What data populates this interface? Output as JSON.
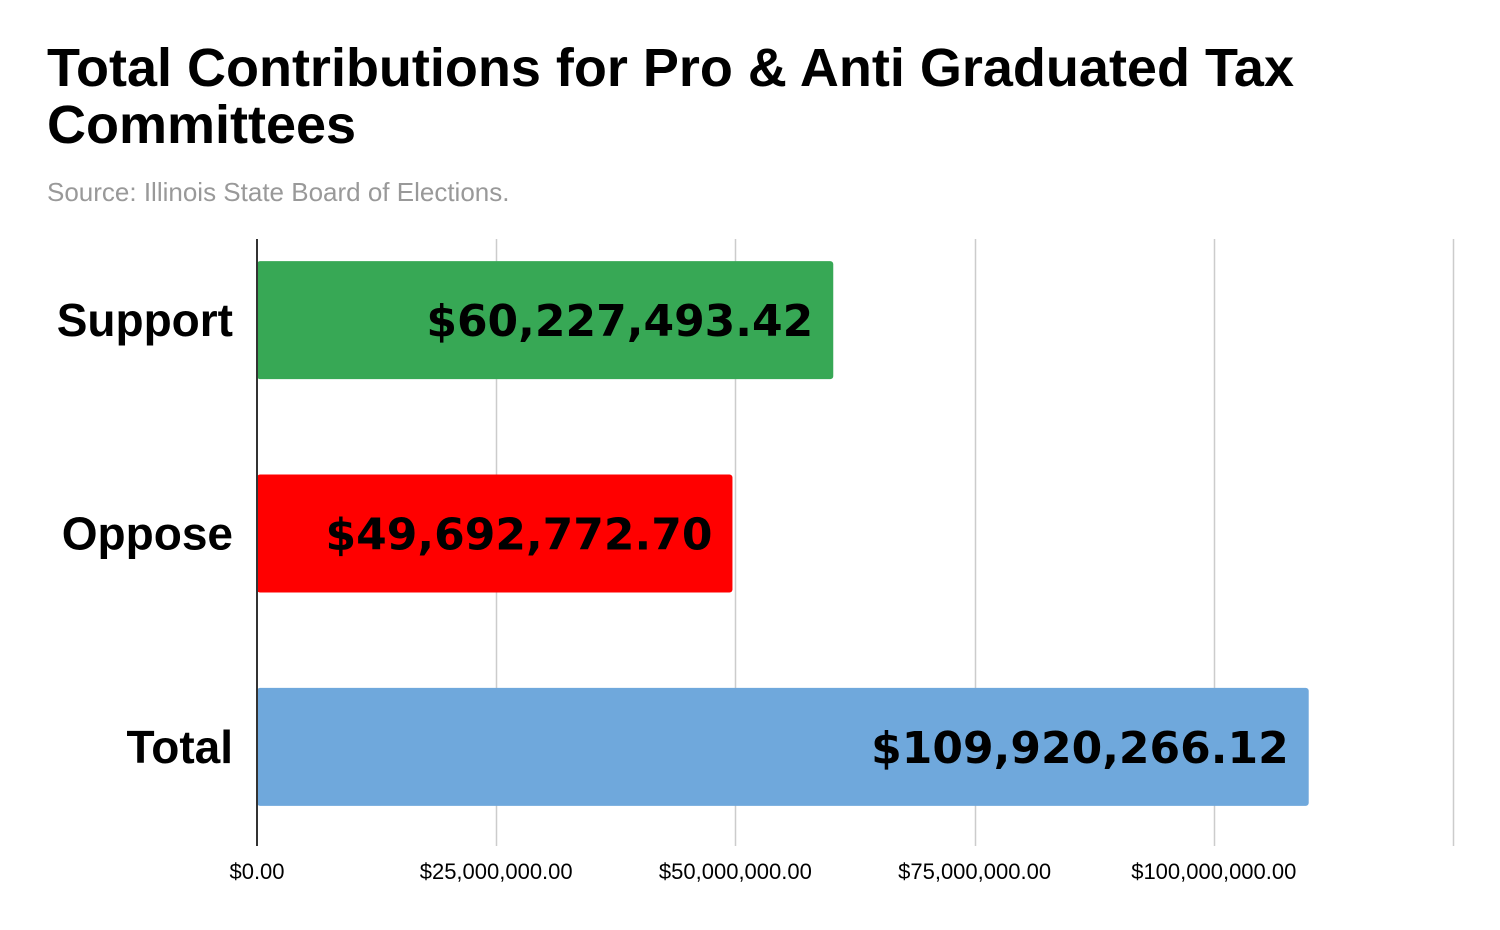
{
  "chart_data": {
    "type": "bar",
    "orientation": "horizontal",
    "title": "Total Contributions for Pro & Anti Graduated Tax Committees",
    "subtitle": "Source: Illinois State Board of Elections.",
    "categories": [
      "Support",
      "Oppose",
      "Total"
    ],
    "values": [
      60227493.42,
      49692772.7,
      109920266.12
    ],
    "value_labels": [
      "$60,227,493.42",
      "$49,692,772.70",
      "$109,920,266.12"
    ],
    "colors": [
      "#37a855",
      "#ff0000",
      "#6fa8dc"
    ],
    "xlim": [
      0,
      125000000
    ],
    "xticks": [
      0,
      25000000,
      50000000,
      75000000,
      100000000,
      125000000
    ],
    "xtick_labels": [
      "$0.00",
      "$25,000,000.00",
      "$50,000,000.00",
      "$75,000,000.00",
      "$100,000,000.00",
      ""
    ],
    "grid": true
  }
}
